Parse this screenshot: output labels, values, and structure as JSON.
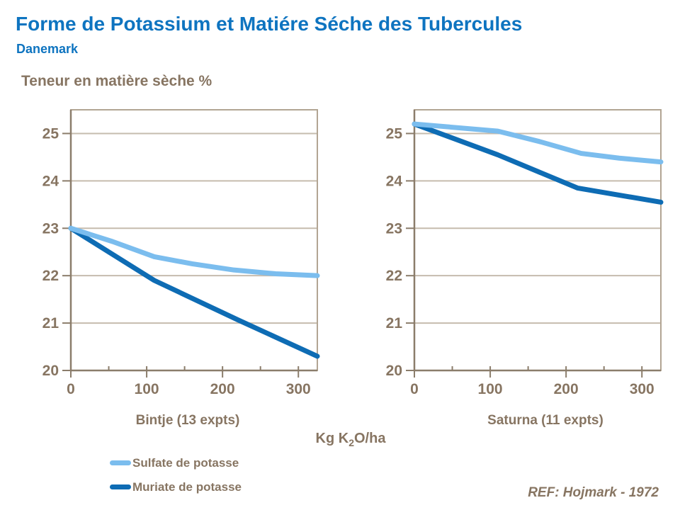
{
  "header": {
    "title": "Forme de Potassium et Matiére Séche des Tubercules",
    "subtitle": "Danemark"
  },
  "axes": {
    "y_title": "Teneur en matière sèche %",
    "x_title": {
      "pre": "Kg K",
      "sub": "2",
      "post": "O/ha"
    }
  },
  "legend": [
    {
      "label": "Sulfate de potasse",
      "color": "#7bbdee"
    },
    {
      "label": "Muriate de potasse",
      "color": "#0e6cb4"
    }
  ],
  "footnote": "REF: Hojmark - 1972",
  "colors": {
    "title_blue": "#0e74c0",
    "text_brown": "#877562",
    "axis": "#8b7d6b",
    "frame": "#b2a593",
    "grid": "#c6bcae",
    "sulfate_blue": "#7bbdee",
    "muriate_blue": "#0e6cb4",
    "background": "#ffffff"
  },
  "chart_data": [
    {
      "type": "line",
      "title": "Bintje (13 expts)",
      "xlabel": "Kg K2O/ha",
      "ylabel": "Teneur en matière sèche %",
      "xlim": [
        0,
        325
      ],
      "ylim": [
        20,
        25.5
      ],
      "y_ticks": [
        20,
        21,
        22,
        23,
        24,
        25
      ],
      "x_major_ticks": [
        0,
        100,
        200,
        300
      ],
      "x_minor_ticks": [
        50,
        150,
        250
      ],
      "grid": "horizontal",
      "legend_position": "below-left",
      "series": [
        {
          "name": "Sulfate de potasse",
          "color": "#7bbdee",
          "points": [
            [
              0,
              23.0
            ],
            [
              55,
              22.72
            ],
            [
              110,
              22.4
            ],
            [
              160,
              22.25
            ],
            [
              215,
              22.12
            ],
            [
              270,
              22.04
            ],
            [
              325,
              22.0
            ]
          ]
        },
        {
          "name": "Muriate de potasse",
          "color": "#0e6cb4",
          "points": [
            [
              0,
              23.0
            ],
            [
              110,
              21.9
            ],
            [
              220,
              21.07
            ],
            [
              325,
              20.3
            ]
          ]
        }
      ]
    },
    {
      "type": "line",
      "title": "Saturna (11 expts)",
      "xlabel": "Kg K2O/ha",
      "ylabel": "Teneur en matière sèche %",
      "xlim": [
        0,
        325
      ],
      "ylim": [
        20,
        25.5
      ],
      "y_ticks": [
        20,
        21,
        22,
        23,
        24,
        25
      ],
      "x_major_ticks": [
        0,
        100,
        200,
        300
      ],
      "x_minor_ticks": [
        50,
        150,
        250
      ],
      "grid": "horizontal",
      "legend_position": "below-left",
      "series": [
        {
          "name": "Sulfate de potasse",
          "color": "#7bbdee",
          "points": [
            [
              0,
              25.2
            ],
            [
              110,
              25.05
            ],
            [
              165,
              24.83
            ],
            [
              220,
              24.58
            ],
            [
              270,
              24.48
            ],
            [
              325,
              24.4
            ]
          ]
        },
        {
          "name": "Muriate de potasse",
          "color": "#0e6cb4",
          "points": [
            [
              0,
              25.2
            ],
            [
              110,
              24.55
            ],
            [
              215,
              23.85
            ],
            [
              325,
              23.55
            ]
          ]
        }
      ]
    }
  ]
}
